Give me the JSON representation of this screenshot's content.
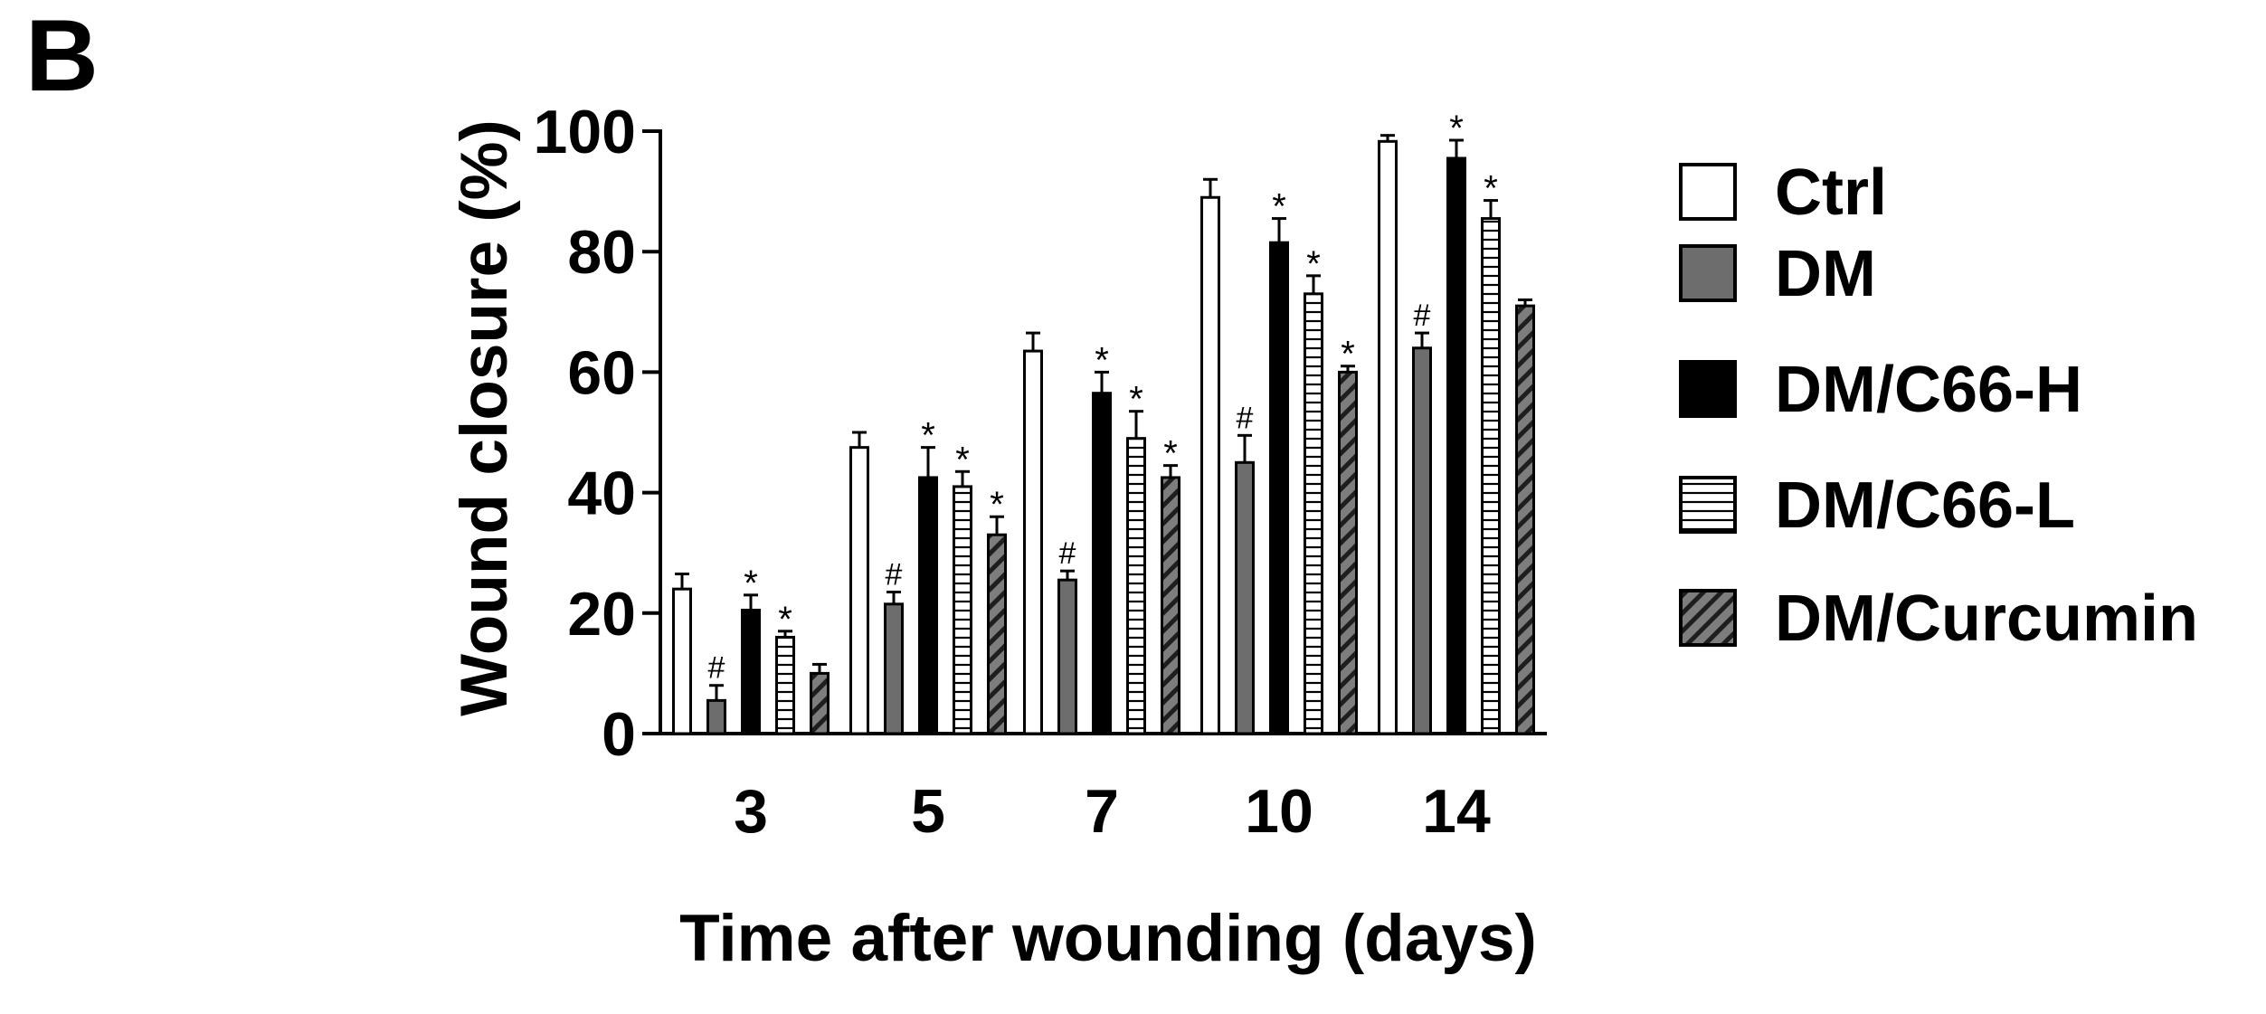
{
  "panel_label": "B",
  "chart_data": {
    "type": "bar",
    "categories": [
      "3",
      "5",
      "7",
      "10",
      "14"
    ],
    "ylabel": "Wound closure (%)",
    "xlabel": "Time after wounding (days)",
    "ylim": [
      0,
      100
    ],
    "yticks": [
      "0",
      "20",
      "40",
      "60",
      "80",
      "100"
    ],
    "legend_position": "right",
    "series": [
      {
        "name": "Ctrl",
        "fill": "white",
        "values": [
          24,
          47.5,
          63.5,
          89,
          98.3
        ],
        "errors": [
          2.5,
          2.5,
          3,
          3,
          1
        ],
        "marks": [
          "",
          "",
          "",
          "",
          ""
        ]
      },
      {
        "name": "DM",
        "fill": "gray",
        "values": [
          5.5,
          21.5,
          25.5,
          45,
          64
        ],
        "errors": [
          2.5,
          2,
          1.5,
          4.5,
          2.5
        ],
        "marks": [
          "#",
          "#",
          "#",
          "#",
          "#"
        ]
      },
      {
        "name": "DM/C66-H",
        "fill": "black",
        "values": [
          20.5,
          42.5,
          56.5,
          81.5,
          95.5
        ],
        "errors": [
          2.5,
          5,
          3.5,
          4,
          3
        ],
        "marks": [
          "*",
          "*",
          "*",
          "*",
          "*"
        ]
      },
      {
        "name": "DM/C66-L",
        "fill": "hlines",
        "values": [
          16,
          41,
          49,
          73,
          85.5
        ],
        "errors": [
          1,
          2.5,
          4.5,
          3,
          3
        ],
        "marks": [
          "*",
          "*",
          "*",
          "*",
          "*"
        ]
      },
      {
        "name": "DM/Curcumin",
        "fill": "diag",
        "values": [
          10,
          33,
          42.5,
          60,
          71
        ],
        "errors": [
          1.5,
          3,
          2,
          1,
          1
        ],
        "marks": [
          "",
          "*",
          "*",
          "*",
          ""
        ]
      }
    ]
  }
}
